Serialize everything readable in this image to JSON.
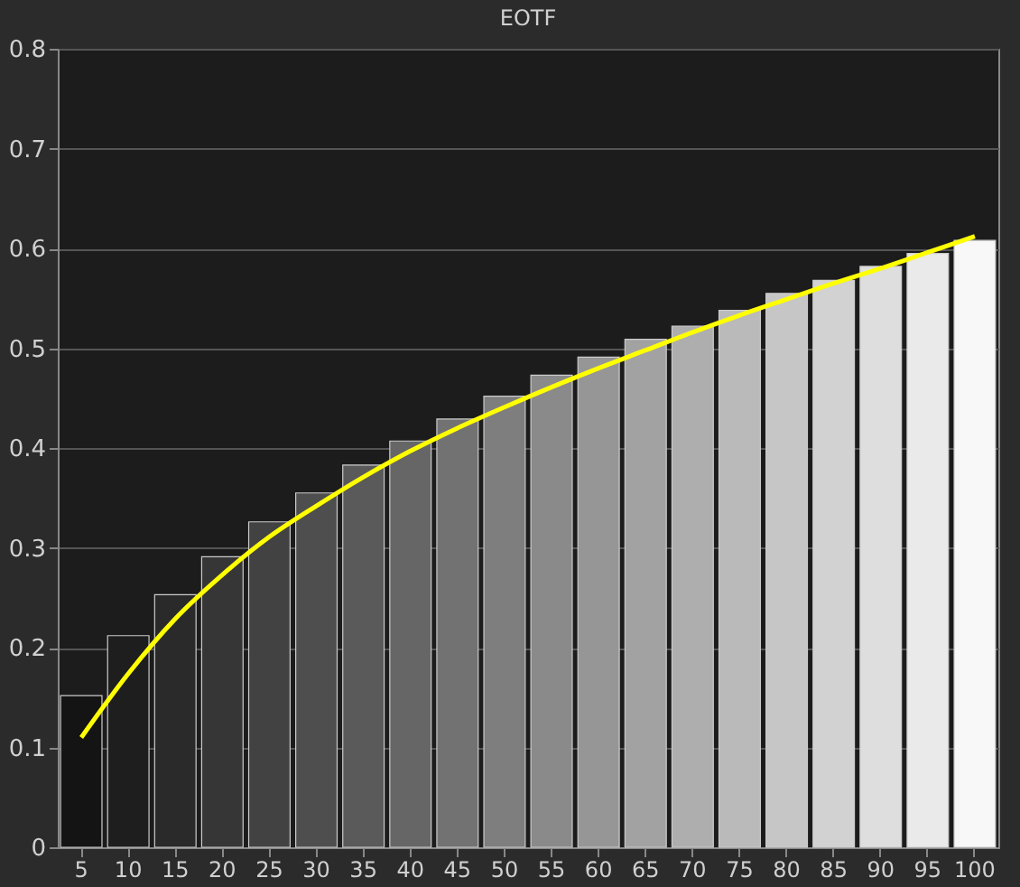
{
  "chart_data": {
    "type": "bar",
    "title": "EOTF",
    "categories": [
      "5",
      "10",
      "15",
      "20",
      "25",
      "30",
      "35",
      "40",
      "45",
      "50",
      "55",
      "60",
      "65",
      "70",
      "75",
      "80",
      "85",
      "90",
      "95",
      "100"
    ],
    "values": [
      0.152,
      0.212,
      0.253,
      0.291,
      0.326,
      0.355,
      0.383,
      0.407,
      0.429,
      0.452,
      0.473,
      0.491,
      0.509,
      0.522,
      0.538,
      0.555,
      0.568,
      0.582,
      0.595,
      0.608
    ],
    "colors": [
      "#141414",
      "#1e1e1e",
      "#2a2a2a",
      "#363636",
      "#424242",
      "#4e4e4e",
      "#5a5a5a",
      "#666666",
      "#727272",
      "#7e7e7e",
      "#8a8a8a",
      "#969696",
      "#a2a2a2",
      "#aeaeae",
      "#bababa",
      "#c6c6c6",
      "#d2d2d2",
      "#dedede",
      "#eaeaea",
      "#f8f8f8"
    ],
    "series": [
      {
        "type": "line",
        "color": "#ffff00",
        "x": [
          "5",
          "10",
          "15",
          "20",
          "25",
          "30",
          "35",
          "40",
          "45",
          "50",
          "55",
          "60",
          "65",
          "70",
          "75",
          "80",
          "85",
          "90",
          "95",
          "100"
        ],
        "values": [
          0.11,
          0.174,
          0.229,
          0.273,
          0.311,
          0.342,
          0.371,
          0.397,
          0.42,
          0.441,
          0.461,
          0.48,
          0.498,
          0.516,
          0.533,
          0.549,
          0.565,
          0.58,
          0.596,
          0.612
        ]
      }
    ],
    "ylim": [
      0,
      0.8
    ],
    "yticks": [
      0,
      0.1,
      0.2,
      0.3,
      0.4,
      0.5,
      0.6,
      0.7,
      0.8
    ],
    "grid": "y",
    "marker": "none",
    "line_style": "solid"
  }
}
